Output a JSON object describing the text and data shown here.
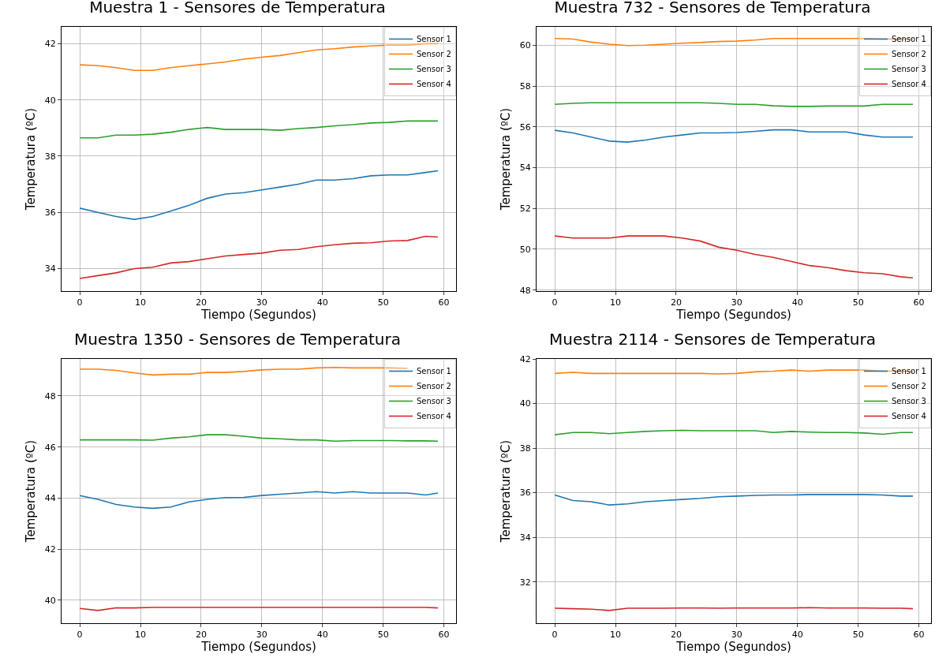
{
  "chart_data": [
    {
      "type": "line",
      "title": "Muestra 1 - Sensores de Temperatura",
      "xlabel": "Tiempo (Segundos)",
      "ylabel": "Temperatura (ºC)",
      "x": [
        0,
        3,
        6,
        9,
        12,
        15,
        18,
        21,
        24,
        27,
        30,
        33,
        36,
        39,
        42,
        45,
        48,
        51,
        54,
        57,
        59
      ],
      "series": [
        {
          "name": "Sensor 1",
          "color": "#1f77b4",
          "values": [
            36.15,
            36.0,
            35.85,
            35.75,
            35.85,
            36.05,
            36.25,
            36.5,
            36.65,
            36.7,
            36.8,
            36.9,
            37.0,
            37.15,
            37.15,
            37.2,
            37.3,
            37.33,
            37.33,
            37.42,
            37.48
          ]
        },
        {
          "name": "Sensor 2",
          "color": "#ff7f0e",
          "values": [
            41.25,
            41.22,
            41.15,
            41.05,
            41.05,
            41.15,
            41.22,
            41.28,
            41.35,
            41.45,
            41.52,
            41.58,
            41.68,
            41.78,
            41.82,
            41.88,
            41.92,
            41.95,
            41.95,
            42.0,
            42.0
          ]
        },
        {
          "name": "Sensor 3",
          "color": "#2ca02c",
          "values": [
            38.65,
            38.65,
            38.75,
            38.75,
            38.78,
            38.85,
            38.95,
            39.02,
            38.95,
            38.95,
            38.95,
            38.92,
            38.98,
            39.02,
            39.08,
            39.12,
            39.18,
            39.2,
            39.25,
            39.25,
            39.25
          ]
        },
        {
          "name": "Sensor 4",
          "color": "#d62728",
          "values": [
            33.65,
            33.75,
            33.85,
            34.0,
            34.05,
            34.2,
            34.25,
            34.35,
            34.45,
            34.5,
            34.55,
            34.65,
            34.68,
            34.78,
            34.85,
            34.9,
            34.92,
            34.98,
            35.0,
            35.15,
            35.12
          ]
        }
      ],
      "xlim": [
        -3,
        62
      ],
      "xticks": [
        0,
        10,
        20,
        30,
        40,
        50,
        60
      ],
      "ylim": [
        33.2,
        42.6
      ],
      "yticks": [
        34,
        36,
        38,
        40,
        42
      ],
      "grid": true,
      "legend": "top right"
    },
    {
      "type": "line",
      "title": "Muestra 732 - Sensores de Temperatura",
      "xlabel": "Tiempo (Segundos)",
      "ylabel": "Temperatura (ºC)",
      "x": [
        0,
        3,
        6,
        9,
        12,
        15,
        18,
        21,
        24,
        27,
        30,
        33,
        36,
        39,
        42,
        45,
        48,
        51,
        54,
        57,
        59
      ],
      "series": [
        {
          "name": "Sensor 1",
          "color": "#1f77b4",
          "values": [
            55.83,
            55.7,
            55.5,
            55.3,
            55.25,
            55.35,
            55.5,
            55.6,
            55.7,
            55.7,
            55.72,
            55.78,
            55.85,
            55.85,
            55.75,
            55.75,
            55.75,
            55.6,
            55.5,
            55.5,
            55.5
          ]
        },
        {
          "name": "Sensor 2",
          "color": "#ff7f0e",
          "values": [
            60.33,
            60.3,
            60.15,
            60.05,
            59.98,
            60.0,
            60.05,
            60.1,
            60.13,
            60.18,
            60.2,
            60.25,
            60.33,
            60.33,
            60.33,
            60.33,
            60.33,
            60.33,
            60.3,
            60.3,
            60.3
          ]
        },
        {
          "name": "Sensor 3",
          "color": "#2ca02c",
          "values": [
            57.1,
            57.15,
            57.18,
            57.18,
            57.18,
            57.18,
            57.18,
            57.18,
            57.18,
            57.15,
            57.1,
            57.1,
            57.03,
            57.0,
            57.0,
            57.02,
            57.02,
            57.02,
            57.1,
            57.1,
            57.1
          ]
        },
        {
          "name": "Sensor 4",
          "color": "#d62728",
          "values": [
            50.65,
            50.55,
            50.55,
            50.55,
            50.65,
            50.65,
            50.65,
            50.55,
            50.4,
            50.1,
            49.95,
            49.75,
            49.6,
            49.4,
            49.2,
            49.1,
            48.95,
            48.85,
            48.8,
            48.65,
            48.6
          ]
        }
      ],
      "xlim": [
        -3,
        62
      ],
      "xticks": [
        0,
        10,
        20,
        30,
        40,
        50,
        60
      ],
      "ylim": [
        47.95,
        60.9
      ],
      "yticks": [
        48,
        50,
        52,
        54,
        56,
        58,
        60
      ],
      "grid": true,
      "legend": "top right"
    },
    {
      "type": "line",
      "title": "Muestra 1350 - Sensores de Temperatura",
      "xlabel": "Tiempo (Segundos)",
      "ylabel": "Temperatura (ºC)",
      "x": [
        0,
        3,
        6,
        9,
        12,
        15,
        18,
        21,
        24,
        27,
        30,
        33,
        36,
        39,
        42,
        45,
        48,
        51,
        54,
        57,
        59
      ],
      "series": [
        {
          "name": "Sensor 1",
          "color": "#1f77b4",
          "values": [
            44.1,
            43.95,
            43.75,
            43.65,
            43.6,
            43.65,
            43.85,
            43.95,
            44.02,
            44.03,
            44.1,
            44.15,
            44.2,
            44.25,
            44.2,
            44.25,
            44.2,
            44.2,
            44.2,
            44.12,
            44.2
          ]
        },
        {
          "name": "Sensor 2",
          "color": "#ff7f0e",
          "values": [
            49.05,
            49.05,
            49.0,
            48.9,
            48.82,
            48.85,
            48.85,
            48.92,
            48.92,
            48.96,
            49.02,
            49.05,
            49.05,
            49.1,
            49.12,
            49.1,
            49.1,
            49.1,
            49.08,
            null,
            null
          ]
        },
        {
          "name": "Sensor 3",
          "color": "#2ca02c",
          "values": [
            46.28,
            46.28,
            46.28,
            46.28,
            46.27,
            46.35,
            46.4,
            46.48,
            46.48,
            46.42,
            46.35,
            46.32,
            46.28,
            46.28,
            46.23,
            46.25,
            46.25,
            46.25,
            46.24,
            46.24,
            46.23
          ]
        },
        {
          "name": "Sensor 4",
          "color": "#d62728",
          "values": [
            39.68,
            39.6,
            39.7,
            39.7,
            39.72,
            39.72,
            39.72,
            39.72,
            39.72,
            39.72,
            39.72,
            39.72,
            39.72,
            39.72,
            39.72,
            39.72,
            39.72,
            39.72,
            39.72,
            39.72,
            39.7
          ]
        }
      ],
      "xlim": [
        -3,
        62
      ],
      "xticks": [
        0,
        10,
        20,
        30,
        40,
        50,
        60
      ],
      "ylim": [
        39.1,
        49.45
      ],
      "yticks": [
        40,
        42,
        44,
        46,
        48
      ],
      "grid": true,
      "legend": "top right"
    },
    {
      "type": "line",
      "title": "Muestra 2114 - Sensores de Temperatura",
      "xlabel": "Tiempo (Segundos)",
      "ylabel": "Temperatura (ºC)",
      "x": [
        0,
        3,
        6,
        9,
        12,
        15,
        18,
        21,
        24,
        27,
        30,
        33,
        36,
        39,
        42,
        45,
        48,
        51,
        54,
        57,
        59
      ],
      "series": [
        {
          "name": "Sensor 1",
          "color": "#1f77b4",
          "values": [
            35.9,
            35.65,
            35.6,
            35.45,
            35.5,
            35.6,
            35.65,
            35.7,
            35.75,
            35.82,
            35.85,
            35.88,
            35.9,
            35.9,
            35.92,
            35.92,
            35.92,
            35.92,
            35.9,
            35.85,
            35.85
          ]
        },
        {
          "name": "Sensor 2",
          "color": "#ff7f0e",
          "values": [
            41.35,
            41.4,
            41.35,
            41.35,
            41.35,
            41.35,
            41.35,
            41.35,
            41.35,
            41.33,
            41.35,
            41.42,
            41.45,
            41.5,
            41.45,
            41.5,
            41.5,
            41.5,
            41.45,
            41.45,
            41.42
          ]
        },
        {
          "name": "Sensor 3",
          "color": "#2ca02c",
          "values": [
            38.6,
            38.7,
            38.7,
            38.65,
            38.7,
            38.75,
            38.78,
            38.8,
            38.78,
            38.78,
            38.78,
            38.78,
            38.7,
            38.75,
            38.72,
            38.7,
            38.7,
            38.68,
            38.62,
            38.7,
            38.7
          ]
        },
        {
          "name": "Sensor 4",
          "color": "#d62728",
          "values": [
            30.82,
            30.8,
            30.78,
            30.72,
            30.82,
            30.82,
            30.82,
            30.83,
            30.83,
            30.82,
            30.83,
            30.83,
            30.83,
            30.83,
            30.85,
            30.83,
            30.83,
            30.83,
            30.82,
            30.82,
            30.8
          ]
        }
      ],
      "xlim": [
        -3,
        62
      ],
      "xticks": [
        0,
        10,
        20,
        30,
        40,
        50,
        60
      ],
      "ylim": [
        30.15,
        42
      ],
      "yticks": [
        32,
        34,
        36,
        38,
        40,
        42
      ],
      "grid": true,
      "legend": "top right"
    }
  ]
}
